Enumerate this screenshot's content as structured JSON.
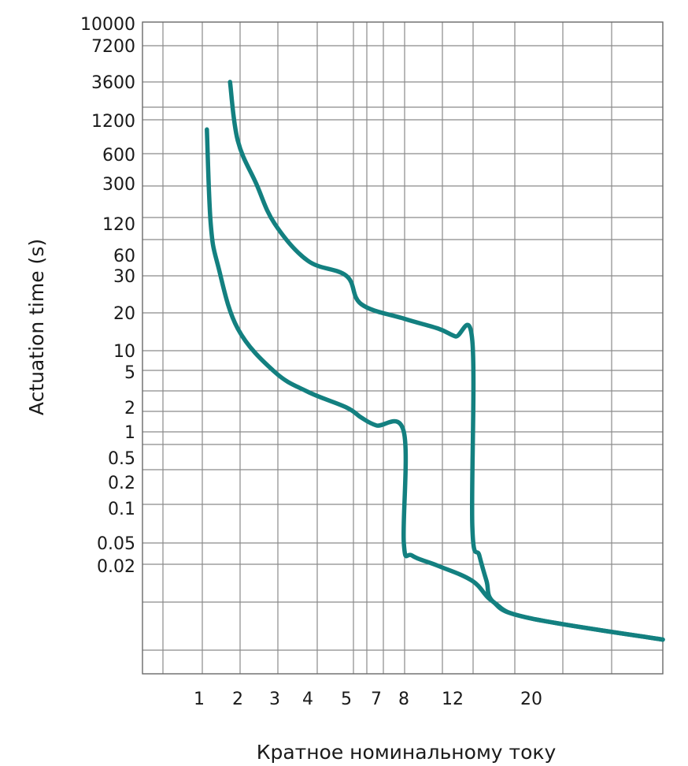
{
  "chart_data": {
    "type": "line",
    "title": "",
    "xlabel": "Кратное номинальному току",
    "ylabel": "Actuation time (s)",
    "x_ticks": [
      "1",
      "2",
      "3",
      "4",
      "5",
      "7",
      "8",
      "12",
      "20"
    ],
    "y_ticks": [
      "10000",
      "7200",
      "3600",
      "1200",
      "600",
      "300",
      "120",
      "60",
      "30",
      "20",
      "10",
      "5",
      "2",
      "1",
      "0.5",
      "0.2",
      "0.1",
      "0.05",
      "0.02"
    ],
    "grid": true,
    "legend": "none",
    "line_color": "#138080",
    "series": [
      {
        "x": [
          1.2,
          1.3,
          1.5,
          2,
          3,
          4,
          5,
          6,
          7,
          8,
          8,
          8.5,
          10,
          12,
          15,
          20,
          30
        ],
        "y": [
          1000,
          120,
          40,
          15,
          5,
          3,
          2,
          1.5,
          1.2,
          1,
          0.05,
          0.03,
          0.02,
          0.015,
          0.01,
          0.006,
          0.003
        ]
      },
      {
        "x": [
          1.8,
          2,
          2.5,
          3,
          4,
          5,
          6,
          8,
          10,
          11,
          12,
          12,
          13,
          14,
          15,
          20,
          30
        ],
        "y": [
          3600,
          800,
          300,
          120,
          50,
          30,
          22,
          18,
          15,
          13,
          12,
          0.07,
          0.03,
          0.015,
          0.01,
          0.006,
          0.003
        ]
      }
    ]
  }
}
